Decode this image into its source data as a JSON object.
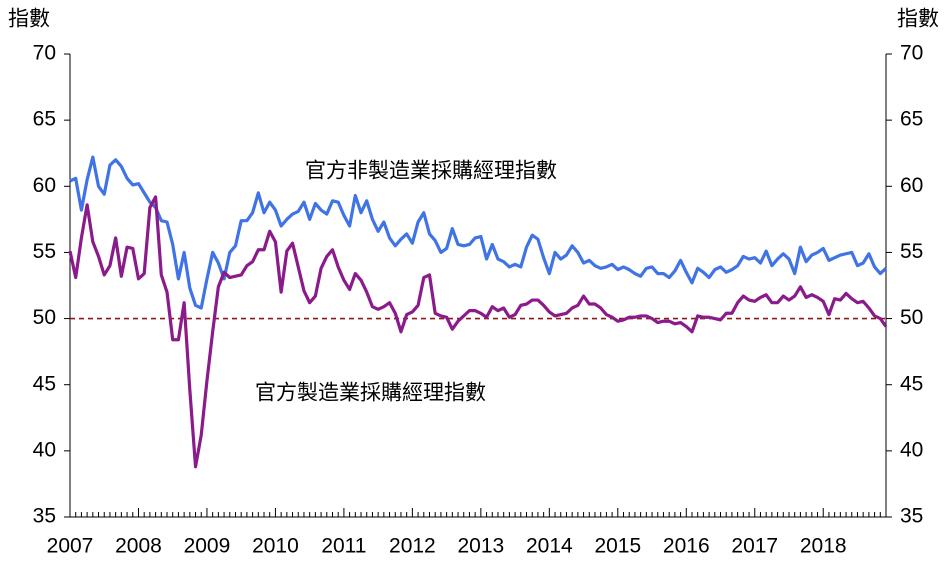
{
  "chart_data": {
    "type": "line",
    "y_label": "指數",
    "y2_label": "指數",
    "categories": [
      "2007",
      null,
      null,
      null,
      null,
      null,
      null,
      null,
      null,
      null,
      null,
      null,
      "2008",
      null,
      null,
      null,
      null,
      null,
      null,
      null,
      null,
      null,
      null,
      null,
      "2009",
      null,
      null,
      null,
      null,
      null,
      null,
      null,
      null,
      null,
      null,
      null,
      "2010",
      null,
      null,
      null,
      null,
      null,
      null,
      null,
      null,
      null,
      null,
      null,
      "2011",
      null,
      null,
      null,
      null,
      null,
      null,
      null,
      null,
      null,
      null,
      null,
      "2012",
      null,
      null,
      null,
      null,
      null,
      null,
      null,
      null,
      null,
      null,
      null,
      "2013",
      null,
      null,
      null,
      null,
      null,
      null,
      null,
      null,
      null,
      null,
      null,
      "2014",
      null,
      null,
      null,
      null,
      null,
      null,
      null,
      null,
      null,
      null,
      null,
      "2015",
      null,
      null,
      null,
      null,
      null,
      null,
      null,
      null,
      null,
      null,
      null,
      "2016",
      null,
      null,
      null,
      null,
      null,
      null,
      null,
      null,
      null,
      null,
      null,
      "2017",
      null,
      null,
      null,
      null,
      null,
      null,
      null,
      null,
      null,
      null,
      null,
      "2018",
      null,
      null,
      null,
      null,
      null,
      null,
      null,
      null,
      null,
      null,
      null
    ],
    "series": [
      {
        "name": "官方非製造業採購經理指數",
        "color": "#3f73e6",
        "values": [
          60.4,
          60.6,
          58.2,
          60.5,
          62.2,
          60.0,
          59.4,
          61.6,
          62.0,
          61.5,
          60.6,
          60.1,
          60.2,
          59.5,
          58.8,
          58.4,
          57.4,
          57.3,
          55.6,
          53.0,
          55.0,
          52.3,
          51.0,
          50.8,
          53.0,
          55.0,
          54.2,
          53.0,
          55.0,
          55.5,
          57.4,
          57.4,
          58.0,
          59.5,
          58.0,
          58.8,
          58.2,
          57.0,
          57.5,
          57.9,
          58.1,
          58.8,
          57.5,
          58.7,
          58.2,
          57.9,
          58.9,
          58.8,
          57.8,
          57.0,
          59.3,
          58.0,
          58.9,
          57.5,
          56.6,
          57.3,
          56.1,
          55.5,
          56.0,
          56.4,
          55.7,
          57.3,
          58.0,
          56.4,
          55.9,
          55.0,
          55.3,
          56.8,
          55.6,
          55.5,
          55.6,
          56.1,
          56.2,
          54.5,
          55.6,
          54.5,
          54.3,
          53.9,
          54.1,
          53.9,
          55.4,
          56.3,
          56.0,
          54.6,
          53.4,
          55.0,
          54.5,
          54.8,
          55.5,
          55.0,
          54.2,
          54.4,
          54.0,
          53.8,
          53.9,
          54.1,
          53.7,
          53.9,
          53.7,
          53.4,
          53.2,
          53.8,
          53.9,
          53.4,
          53.4,
          53.1,
          53.6,
          54.4,
          53.5,
          52.7,
          53.8,
          53.5,
          53.1,
          53.7,
          53.9,
          53.5,
          53.7,
          54.0,
          54.7,
          54.5,
          54.6,
          54.2,
          55.1,
          54.0,
          54.5,
          54.9,
          54.5,
          53.4,
          55.4,
          54.3,
          54.8,
          55.0,
          55.3,
          54.4,
          54.6,
          54.8,
          54.9,
          55.0,
          54.0,
          54.2,
          54.9,
          53.9,
          53.4,
          53.8
        ]
      },
      {
        "name": "官方製造業採購經理指數",
        "color": "#8b1a8b",
        "values": [
          55.1,
          53.1,
          56.1,
          58.6,
          55.8,
          54.7,
          53.3,
          54.0,
          56.1,
          53.2,
          55.4,
          55.3,
          53.0,
          53.4,
          58.4,
          59.2,
          53.3,
          52.0,
          48.4,
          48.4,
          51.2,
          44.6,
          38.8,
          41.2,
          45.3,
          49.0,
          52.4,
          53.5,
          53.1,
          53.2,
          53.3,
          54.0,
          54.3,
          55.2,
          55.2,
          56.6,
          55.8,
          52.0,
          55.1,
          55.7,
          53.9,
          52.1,
          51.2,
          51.7,
          53.8,
          54.7,
          55.2,
          53.9,
          52.9,
          52.2,
          53.4,
          52.9,
          52.0,
          50.9,
          50.7,
          50.9,
          51.2,
          50.4,
          49.0,
          50.3,
          50.5,
          51.0,
          53.1,
          53.3,
          50.4,
          50.2,
          50.1,
          49.2,
          49.8,
          50.2,
          50.6,
          50.6,
          50.4,
          50.1,
          50.9,
          50.6,
          50.8,
          50.1,
          50.3,
          51.0,
          51.1,
          51.4,
          51.4,
          51.0,
          50.5,
          50.2,
          50.3,
          50.4,
          50.8,
          51.0,
          51.7,
          51.1,
          51.1,
          50.8,
          50.3,
          50.1,
          49.8,
          49.9,
          50.1,
          50.1,
          50.2,
          50.2,
          50.0,
          49.7,
          49.8,
          49.8,
          49.6,
          49.7,
          49.4,
          49.0,
          50.2,
          50.1,
          50.1,
          50.0,
          49.9,
          50.4,
          50.4,
          51.2,
          51.7,
          51.4,
          51.3,
          51.6,
          51.8,
          51.2,
          51.2,
          51.7,
          51.4,
          51.7,
          52.4,
          51.6,
          51.8,
          51.6,
          51.3,
          50.3,
          51.5,
          51.4,
          51.9,
          51.5,
          51.2,
          51.3,
          50.8,
          50.2,
          50.0,
          49.4
        ]
      }
    ],
    "ylim": [
      35,
      70
    ],
    "yticks": [
      35,
      40,
      45,
      50,
      55,
      60,
      65,
      70
    ],
    "y2lim": [
      35,
      70
    ],
    "y2ticks": [
      35,
      40,
      45,
      50,
      55,
      60,
      65,
      70
    ],
    "reference_line": 50,
    "reference_color": "#8b1a1a",
    "grid": false
  }
}
